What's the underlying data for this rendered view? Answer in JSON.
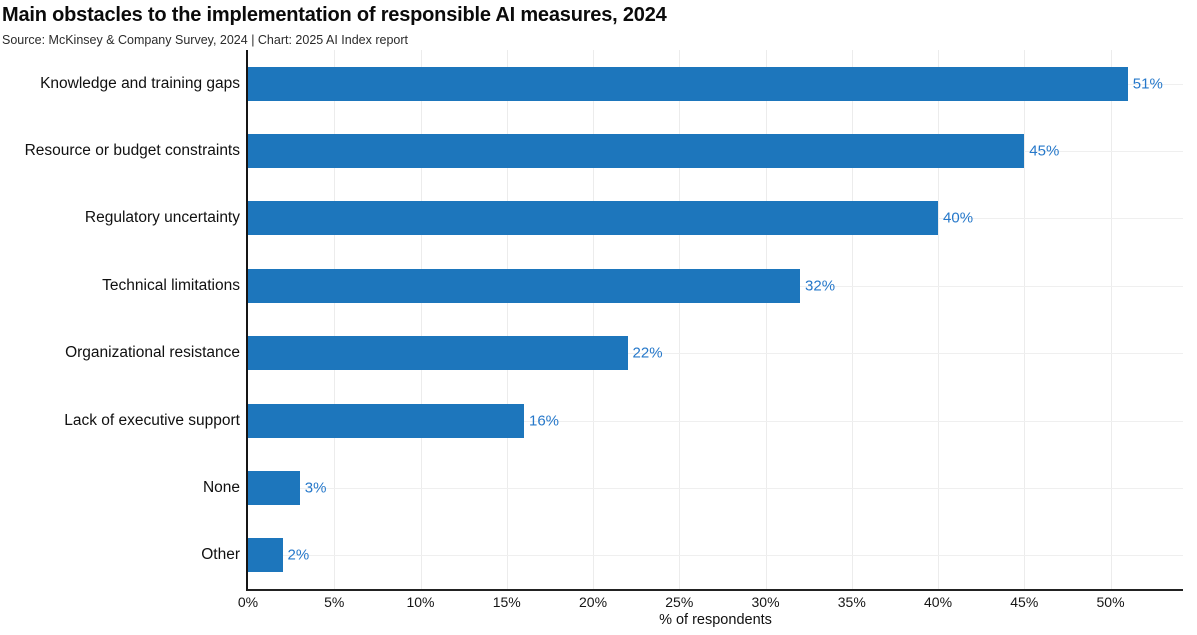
{
  "header": {
    "title": "Main obstacles to the implementation of responsible AI measures, 2024",
    "source_line": "Source: McKinsey & Company Survey, 2024 | Chart: 2025 AI Index report"
  },
  "colors": {
    "bar": "#1d76bc",
    "value_label": "#2678ca",
    "gridline": "#ececec",
    "axis_spine": "#1a1a1a",
    "text": "#111111",
    "background": "#ffffff"
  },
  "chart_data": {
    "type": "bar",
    "orientation": "horizontal",
    "title": "Main obstacles to the implementation of responsible AI measures, 2024",
    "source": "Source: McKinsey & Company Survey, 2024 | Chart: 2025 AI Index report",
    "categories": [
      "Knowledge and training gaps",
      "Resource or budget constraints",
      "Regulatory uncertainty",
      "Technical limitations",
      "Organizational resistance",
      "Lack of executive support",
      "None",
      "Other"
    ],
    "values": [
      51,
      45,
      40,
      32,
      22,
      16,
      3,
      2
    ],
    "value_labels": [
      "51%",
      "45%",
      "40%",
      "32%",
      "22%",
      "16%",
      "3%",
      "2%"
    ],
    "xlabel": "% of respondents",
    "ylabel": "",
    "x_ticks": [
      "0%",
      "5%",
      "10%",
      "15%",
      "20%",
      "25%",
      "30%",
      "35%",
      "40%",
      "45%",
      "50%"
    ],
    "x_tick_values": [
      0,
      5,
      10,
      15,
      20,
      25,
      30,
      35,
      40,
      45,
      50
    ],
    "xlim": [
      0,
      54.2
    ],
    "grid": "light vertical gridlines at each 5% tick and light horizontal gridlines at each category",
    "legend": "none",
    "bar_color": "#1d76bc",
    "value_label_color": "#2678ca"
  }
}
